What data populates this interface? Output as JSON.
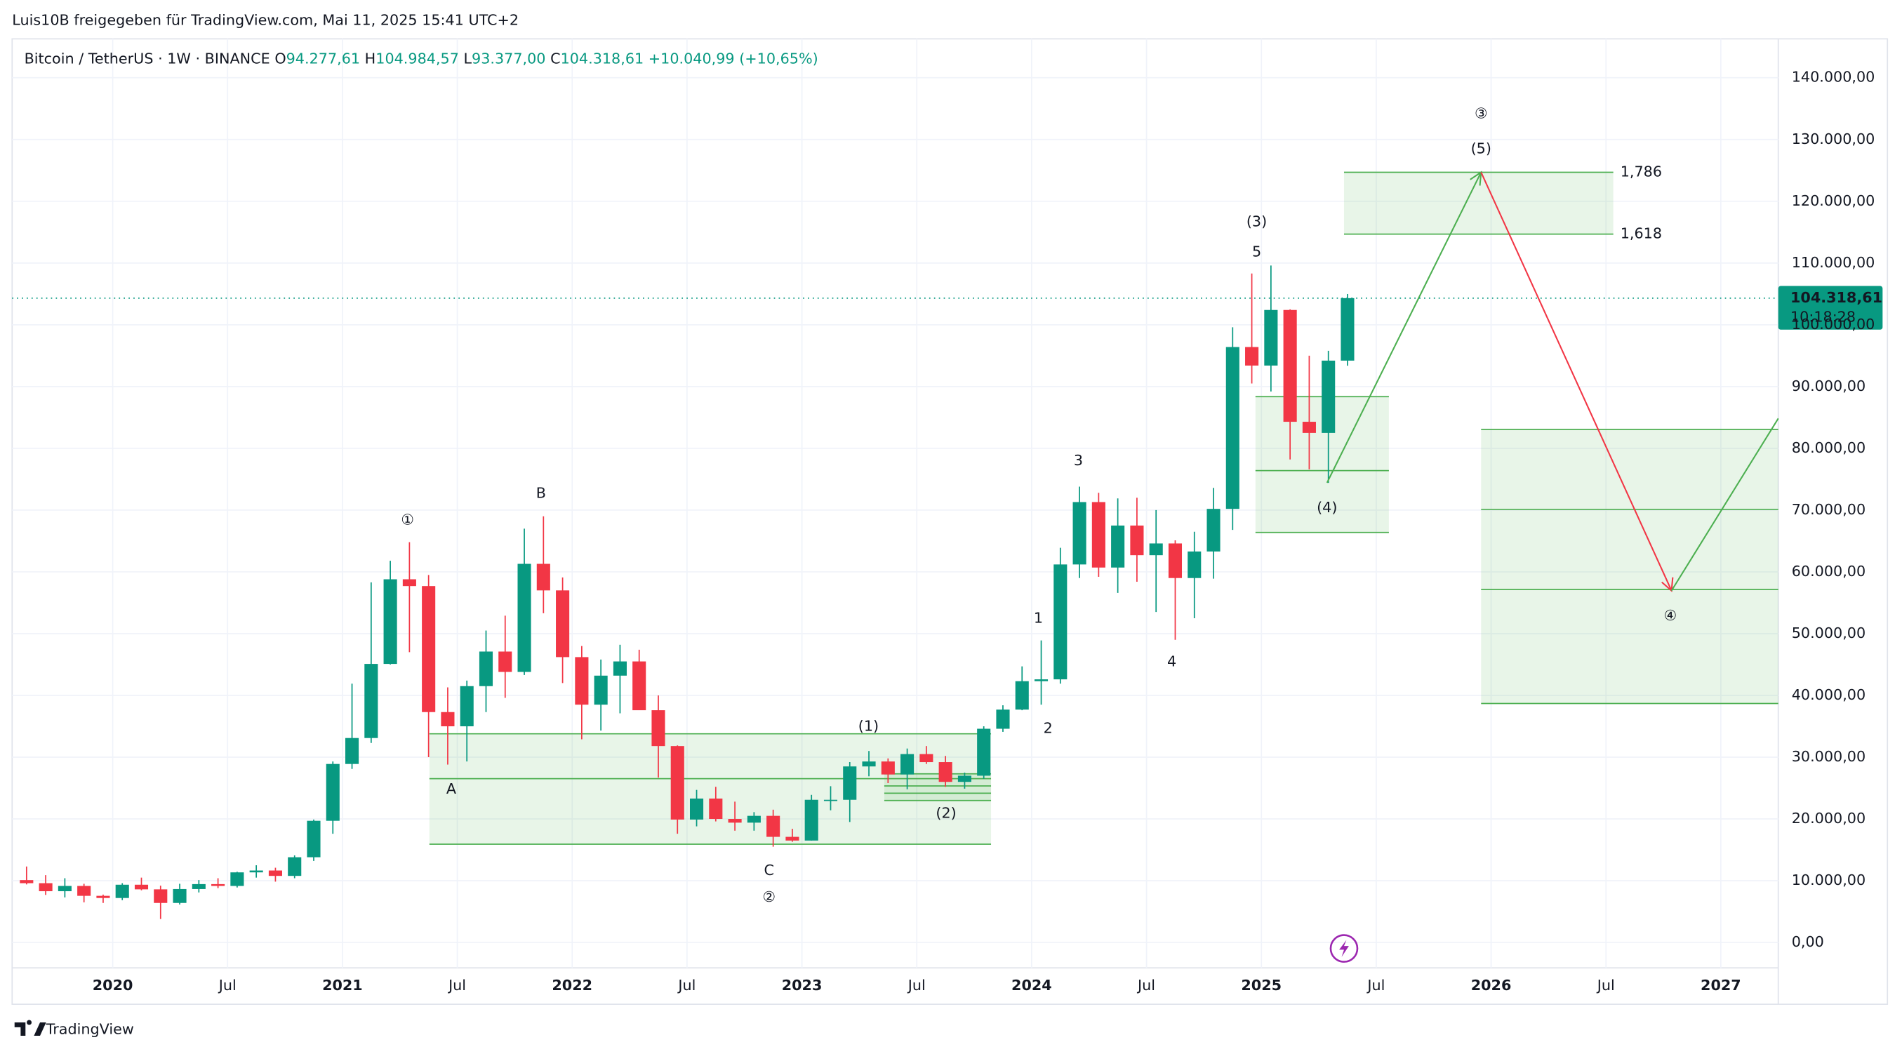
{
  "header": {
    "shared_by": "Luis10B freigegeben für TradingView.com, Mai 11, 2025 15:41 UTC+2",
    "symbol": "Bitcoin / TetherUS · 1W · BINANCE",
    "ohlc": [
      {
        "key": "O",
        "value": "94.277,61"
      },
      {
        "key": "H",
        "value": "104.984,57"
      },
      {
        "key": "L",
        "value": "93.377,00"
      },
      {
        "key": "C",
        "value": "104.318,61"
      }
    ],
    "change": "+10.040,99 (+10,65%)"
  },
  "price_label": {
    "price": "104.318,61",
    "countdown": "10:18:28"
  },
  "footer": {
    "logo": "TradingView"
  },
  "chart_data": {
    "type": "candlestick",
    "up_color": "#089981",
    "down_color": "#f23645",
    "grid": true,
    "x": [
      "2019-08",
      "2019-09",
      "2019-10",
      "2019-11",
      "2019-12",
      "2020-01",
      "2020-02",
      "2020-03",
      "2020-04",
      "2020-05",
      "2020-06",
      "2020-07",
      "2020-08",
      "2020-09",
      "2020-10",
      "2020-11",
      "2020-12",
      "2021-01",
      "2021-02",
      "2021-03",
      "2021-04",
      "2021-05",
      "2021-06",
      "2021-07",
      "2021-08",
      "2021-09",
      "2021-10",
      "2021-11",
      "2021-12",
      "2022-01",
      "2022-02",
      "2022-03",
      "2022-04",
      "2022-05",
      "2022-06",
      "2022-07",
      "2022-08",
      "2022-09",
      "2022-10",
      "2022-11",
      "2022-12",
      "2023-01",
      "2023-02",
      "2023-03",
      "2023-04",
      "2023-05",
      "2023-06",
      "2023-07",
      "2023-08",
      "2023-09",
      "2023-10",
      "2023-11",
      "2023-12",
      "2024-01",
      "2024-02",
      "2024-03",
      "2024-04",
      "2024-05",
      "2024-06",
      "2024-07",
      "2024-08",
      "2024-09",
      "2024-10",
      "2024-11",
      "2024-12",
      "2025-01",
      "2025-02",
      "2025-03",
      "2025-04",
      "2025-05"
    ],
    "open": [
      10100,
      9600,
      8300,
      9150,
      7550,
      7200,
      9350,
      8600,
      6400,
      8650,
      9450,
      9150,
      11350,
      11650,
      10780,
      13800,
      19700,
      28900,
      33100,
      45100,
      58800,
      57700,
      37300,
      35000,
      41500,
      47100,
      43800,
      61300,
      57000,
      46200,
      38500,
      43200,
      45500,
      37600,
      31800,
      19900,
      23300,
      20000,
      19400,
      20500,
      17100,
      16500,
      23100,
      23100,
      28500,
      29300,
      27200,
      30500,
      29200,
      26000,
      27000,
      34600,
      37700,
      42300,
      42600,
      61200,
      71300,
      60700,
      67500,
      62700,
      64600,
      59000,
      63300,
      70200,
      96400,
      93400,
      102400,
      84300,
      82500,
      94200
    ],
    "high": [
      12300,
      10900,
      10400,
      9500,
      7750,
      9600,
      10500,
      9200,
      9500,
      10100,
      10400,
      11450,
      12500,
      12100,
      14100,
      19900,
      29300,
      41900,
      58300,
      61800,
      64800,
      59500,
      41300,
      42400,
      50500,
      52900,
      67000,
      69000,
      59100,
      48000,
      45800,
      48200,
      47400,
      40000,
      31900,
      24700,
      25200,
      22800,
      21100,
      21500,
      18400,
      23900,
      25300,
      29200,
      31000,
      29800,
      31400,
      31800,
      30200,
      27500,
      35000,
      38400,
      44700,
      48900,
      63900,
      73800,
      72800,
      71900,
      72000,
      70000,
      65100,
      66500,
      73600,
      99600,
      108300,
      109600,
      102500,
      95000,
      95800,
      104984
    ],
    "low": [
      9400,
      7700,
      7300,
      6500,
      6400,
      6850,
      8450,
      3800,
      6150,
      8100,
      8800,
      8900,
      10500,
      9850,
      10400,
      13200,
      17600,
      28100,
      32300,
      45000,
      47000,
      30000,
      28800,
      29300,
      37300,
      39600,
      43300,
      53300,
      42000,
      32900,
      34300,
      37100,
      37700,
      26700,
      17600,
      18800,
      19600,
      18100,
      18100,
      15500,
      16300,
      16500,
      21400,
      19500,
      26900,
      25800,
      24800,
      28900,
      25200,
      24900,
      26500,
      34100,
      37600,
      38500,
      41900,
      59000,
      59200,
      56600,
      58400,
      53500,
      49000,
      52500,
      58900,
      66800,
      90500,
      89200,
      78200,
      76600,
      74400,
      93377
    ],
    "close": [
      9600,
      8300,
      9150,
      7550,
      7200,
      9350,
      8600,
      6400,
      8650,
      9450,
      9150,
      11350,
      11650,
      10780,
      13800,
      19700,
      28900,
      33100,
      45100,
      58800,
      57700,
      37300,
      35000,
      41500,
      47100,
      43800,
      61300,
      57000,
      46200,
      38500,
      43200,
      45500,
      37600,
      31800,
      19900,
      23300,
      20000,
      19400,
      20500,
      17100,
      16500,
      23100,
      23100,
      28500,
      29300,
      27200,
      30500,
      29200,
      26000,
      27000,
      34600,
      37700,
      42300,
      42600,
      61200,
      71300,
      60700,
      67500,
      62700,
      64600,
      59000,
      63300,
      70200,
      96400,
      93400,
      102400,
      84300,
      82500,
      94200,
      104318
    ],
    "xlim": [
      "2019-08",
      "2027-04"
    ],
    "xticks": [
      {
        "value": "2020-01",
        "label": "2020"
      },
      {
        "value": "2020-07",
        "label": "Jul"
      },
      {
        "value": "2021-01",
        "label": "2021"
      },
      {
        "value": "2021-07",
        "label": "Jul"
      },
      {
        "value": "2022-01",
        "label": "2022"
      },
      {
        "value": "2022-07",
        "label": "Jul"
      },
      {
        "value": "2023-01",
        "label": "2023"
      },
      {
        "value": "2023-07",
        "label": "Jul"
      },
      {
        "value": "2024-01",
        "label": "2024"
      },
      {
        "value": "2024-07",
        "label": "Jul"
      },
      {
        "value": "2025-01",
        "label": "2025"
      },
      {
        "value": "2025-07",
        "label": "Jul"
      },
      {
        "value": "2026-01",
        "label": "2026"
      },
      {
        "value": "2026-07",
        "label": "Jul"
      },
      {
        "value": "2027-01",
        "label": "2027"
      }
    ],
    "ylim": [
      -10000,
      146000
    ],
    "yticks": [
      {
        "value": 0,
        "label": "0,00"
      },
      {
        "value": 10000,
        "label": "10.000,00"
      },
      {
        "value": 20000,
        "label": "20.000,00"
      },
      {
        "value": 30000,
        "label": "30.000,00"
      },
      {
        "value": 40000,
        "label": "40.000,00"
      },
      {
        "value": 50000,
        "label": "50.000,00"
      },
      {
        "value": 60000,
        "label": "60.000,00"
      },
      {
        "value": 70000,
        "label": "70.000,00"
      },
      {
        "value": 80000,
        "label": "80.000,00"
      },
      {
        "value": 90000,
        "label": "90.000,00"
      },
      {
        "value": 100000,
        "label": "100.000,00"
      },
      {
        "value": 110000,
        "label": "110.000,00"
      },
      {
        "value": 120000,
        "label": "120.000,00"
      },
      {
        "value": 130000,
        "label": "130.000,00"
      },
      {
        "value": 140000,
        "label": "140.000,00"
      }
    ],
    "annotations": [
      {
        "text": "①",
        "color": "#4caf50"
      },
      {
        "text": "B",
        "color": "#f23645"
      },
      {
        "text": "A",
        "color": "#f23645"
      },
      {
        "text": "C",
        "color": "#f23645"
      },
      {
        "text": "②",
        "color": "#4caf50"
      },
      {
        "text": "(1)",
        "color": "#4caf50"
      },
      {
        "text": "(2)",
        "color": "#4caf50"
      },
      {
        "text": "1",
        "color": "#4caf50"
      },
      {
        "text": "2",
        "color": "#4caf50"
      },
      {
        "text": "3",
        "color": "#4caf50"
      },
      {
        "text": "4",
        "color": "#4caf50"
      },
      {
        "text": "5",
        "color": "#4caf50"
      },
      {
        "text": "(3)",
        "color": "#4caf50"
      },
      {
        "text": "(4)",
        "color": "#4caf50"
      },
      {
        "text": "(5)",
        "color": "#4caf50"
      },
      {
        "text": "③",
        "color": "#4caf50"
      },
      {
        "text": "④",
        "color": "#4caf50"
      },
      {
        "text": "1,786",
        "color": "#4caf50"
      },
      {
        "text": "1,618",
        "color": "#4caf50"
      }
    ]
  }
}
